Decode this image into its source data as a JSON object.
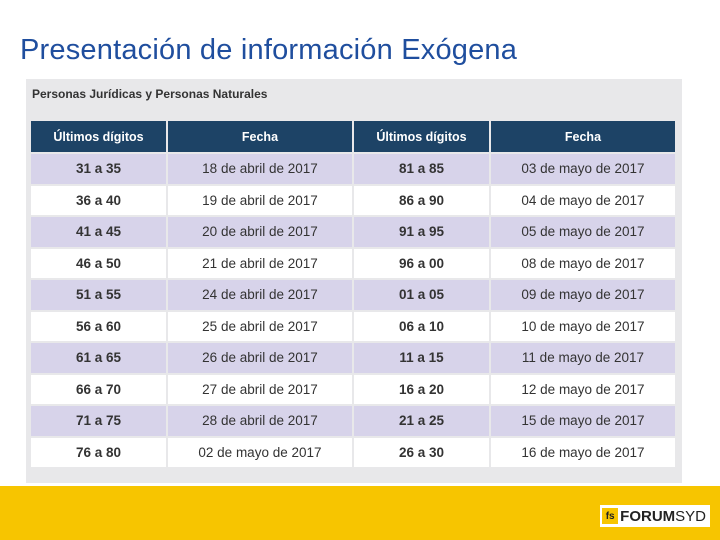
{
  "slide": {
    "title": "Presentación de información Exógena"
  },
  "table": {
    "caption": "Personas Jurídicas y Personas Naturales",
    "headers": [
      "Últimos dígitos",
      "Fecha",
      "Últimos dígitos",
      "Fecha"
    ],
    "rows": [
      [
        "31 a 35",
        "18 de abril de 2017",
        "81 a 85",
        "03 de mayo de 2017"
      ],
      [
        "36 a 40",
        "19 de abril de 2017",
        "86 a 90",
        "04 de mayo de 2017"
      ],
      [
        "41 a 45",
        "20 de abril de 2017",
        "91 a 95",
        "05 de mayo de 2017"
      ],
      [
        "46 a 50",
        "21 de abril de 2017",
        "96 a 00",
        "08 de mayo de 2017"
      ],
      [
        "51 a 55",
        "24 de abril de 2017",
        "01 a 05",
        "09 de mayo de 2017"
      ],
      [
        "56 a 60",
        "25 de abril de 2017",
        "06 a 10",
        "10 de mayo de 2017"
      ],
      [
        "61 a 65",
        "26 de abril de 2017",
        "11 a 15",
        "11 de mayo de 2017"
      ],
      [
        "66 a 70",
        "27 de abril de 2017",
        "16 a 20",
        "12 de mayo de 2017"
      ],
      [
        "71 a 75",
        "28 de abril de 2017",
        "21 a 25",
        "15 de mayo de 2017"
      ],
      [
        "76 a 80",
        "02 de mayo de 2017",
        "26 a 30",
        "16 de mayo de 2017"
      ]
    ]
  },
  "footer": {
    "logo_mark": "fs",
    "logo_bold": "FORUM",
    "logo_light": "SYD",
    "bar_color": "#f7c500"
  }
}
